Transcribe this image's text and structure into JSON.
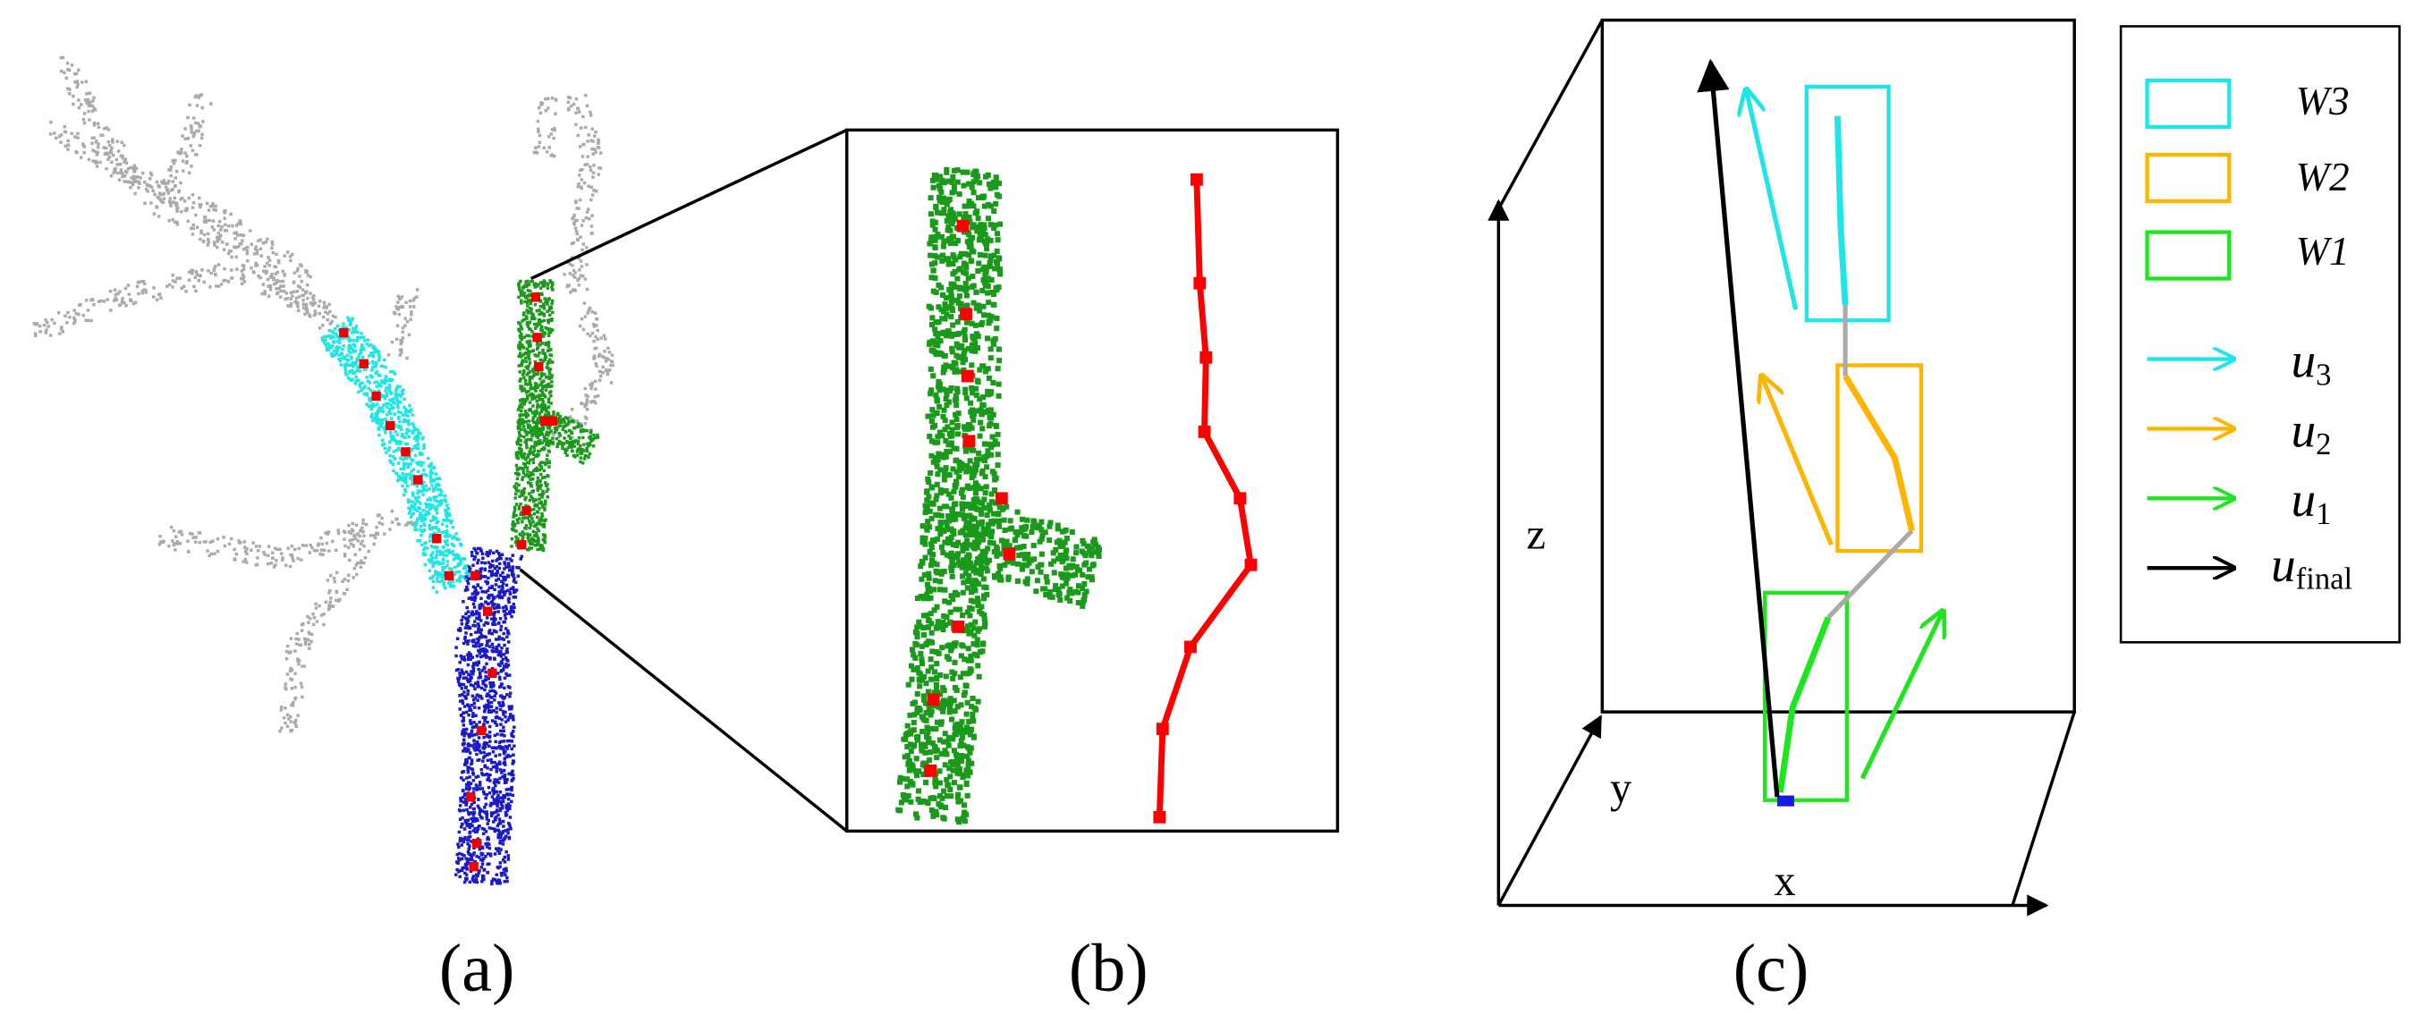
{
  "panels": [
    {
      "label": "(a)"
    },
    {
      "label": "(b)"
    },
    {
      "label": "(c)",
      "axes": {
        "x": "x",
        "y": "y",
        "z": "z"
      },
      "legend": [
        {
          "label": "W3"
        },
        {
          "label": "W2"
        },
        {
          "label": "W1"
        },
        {
          "symbol": "u",
          "subscript": "3"
        },
        {
          "symbol": "u",
          "subscript": "2"
        },
        {
          "symbol": "u",
          "subscript": "1"
        },
        {
          "symbol": "u",
          "subscript": "final"
        }
      ]
    }
  ]
}
